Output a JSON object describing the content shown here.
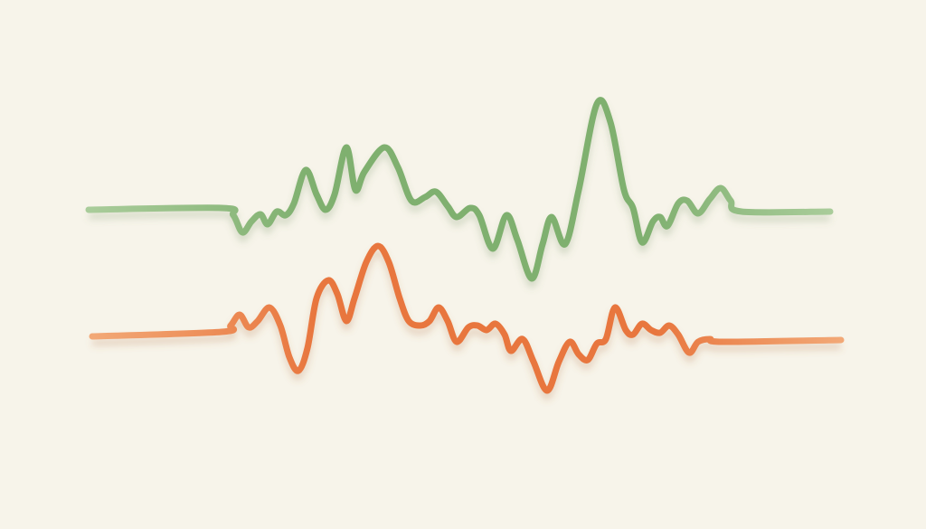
{
  "background_color": "#f7f4ea",
  "waves": [
    {
      "id": "green",
      "color": "#7fb06f",
      "end_color": "#a9cc9a"
    },
    {
      "id": "orange",
      "color": "#e8763e",
      "end_color": "#f2a876"
    }
  ]
}
